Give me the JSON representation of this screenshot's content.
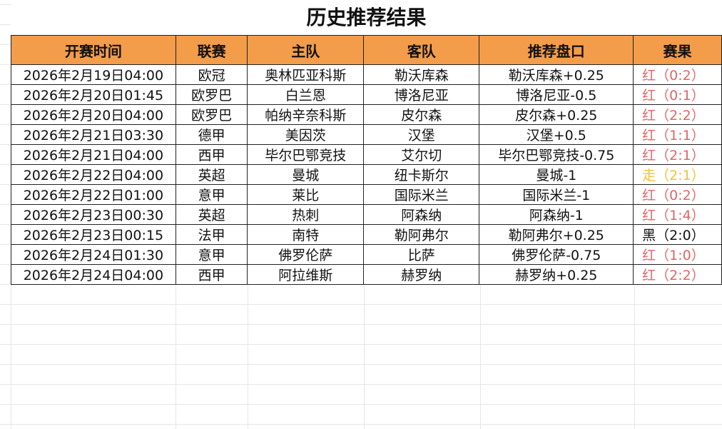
{
  "title": "历史推荐结果",
  "headers": [
    "开赛时间",
    "联赛",
    "主队",
    "客队",
    "推荐盘口",
    "赛果"
  ],
  "colors": {
    "header_bg": "#f39c4a",
    "red": "#e06666",
    "yellow": "#f1c232",
    "black": "#111111"
  },
  "rows": [
    {
      "time": "2026年2月19日04:00",
      "league": "欧冠",
      "home": "奥林匹亚科斯",
      "away": "勒沃库森",
      "pick": "勒沃库森+0.25",
      "result": "红（0:2）",
      "status": "red"
    },
    {
      "time": "2026年2月20日01:45",
      "league": "欧罗巴",
      "home": "白兰恩",
      "away": "博洛尼亚",
      "pick": "博洛尼亚-0.5",
      "result": "红（0:1）",
      "status": "red"
    },
    {
      "time": "2026年2月20日04:00",
      "league": "欧罗巴",
      "home": "帕纳辛奈科斯",
      "away": "皮尔森",
      "pick": "皮尔森+0.25",
      "result": "红（2:2）",
      "status": "red"
    },
    {
      "time": "2026年2月21日03:30",
      "league": "德甲",
      "home": "美因茨",
      "away": "汉堡",
      "pick": "汉堡+0.5",
      "result": "红（1:1）",
      "status": "red"
    },
    {
      "time": "2026年2月21日04:00",
      "league": "西甲",
      "home": "毕尔巴鄂竞技",
      "away": "艾尔切",
      "pick": "毕尔巴鄂竞技-0.75",
      "result": "红（2:1）",
      "status": "red"
    },
    {
      "time": "2026年2月22日04:00",
      "league": "英超",
      "home": "曼城",
      "away": "纽卡斯尔",
      "pick": "曼城-1",
      "result": "走（2:1）",
      "status": "push"
    },
    {
      "time": "2026年2月22日01:00",
      "league": "意甲",
      "home": "莱比",
      "away": "国际米兰",
      "pick": "国际米兰-1",
      "result": "红（0:2）",
      "status": "red"
    },
    {
      "time": "2026年2月23日00:30",
      "league": "英超",
      "home": "热刺",
      "away": "阿森纳",
      "pick": "阿森纳-1",
      "result": "红（1:4）",
      "status": "red"
    },
    {
      "time": "2026年2月23日00:15",
      "league": "法甲",
      "home": "南特",
      "away": "勒阿弗尔",
      "pick": "勒阿弗尔+0.25",
      "result": "黑（2:0）",
      "status": "black"
    },
    {
      "time": "2026年2月24日01:30",
      "league": "意甲",
      "home": "佛罗伦萨",
      "away": "比萨",
      "pick": "佛罗伦萨-0.75",
      "result": "红（1:0）",
      "status": "red"
    },
    {
      "time": "2026年2月24日04:00",
      "league": "西甲",
      "home": "阿拉维斯",
      "away": "赫罗纳",
      "pick": "赫罗纳+0.25",
      "result": "红（2:2）",
      "status": "red"
    }
  ]
}
